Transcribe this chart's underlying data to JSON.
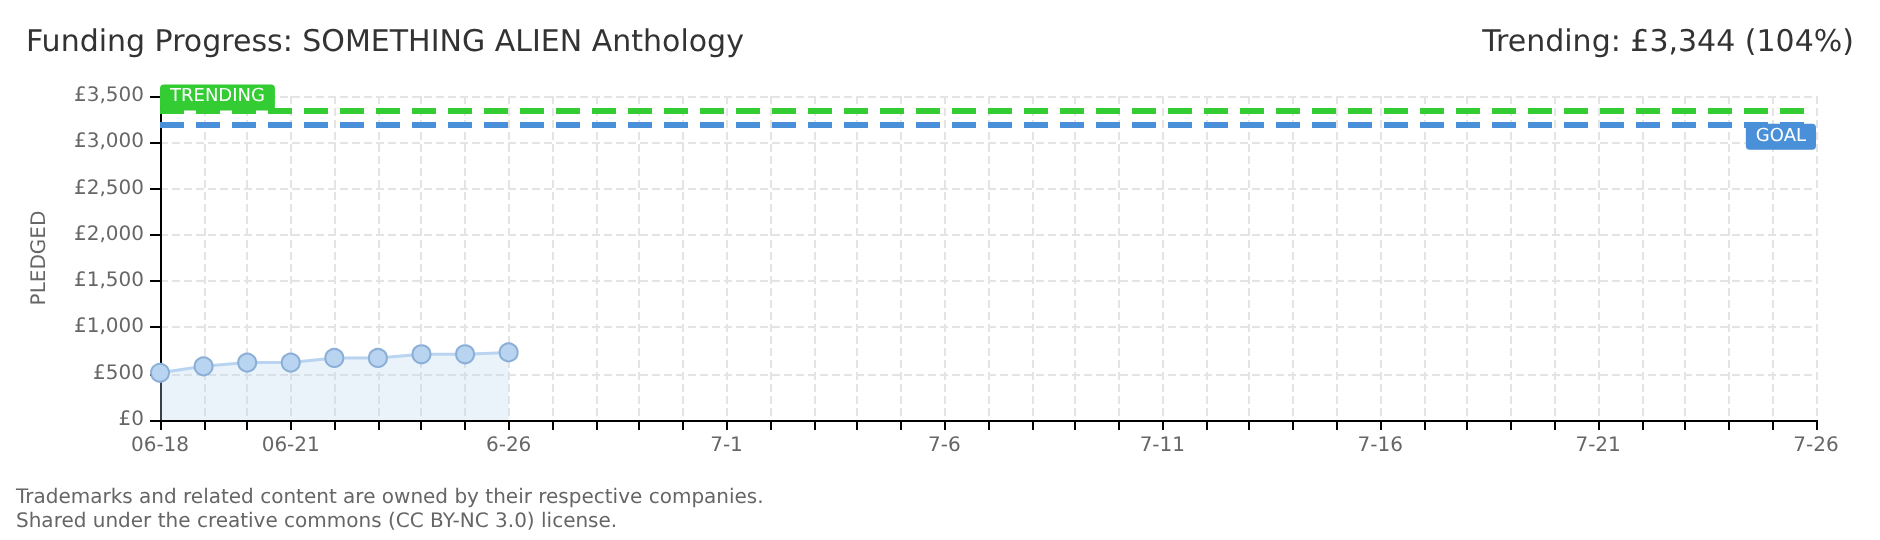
{
  "chart_data": {
    "type": "area",
    "title": "Funding Progress: SOMETHING ALIEN Anthology",
    "subtitle": "Trending: £3,344 (104%)",
    "ylabel": "PLEDGED",
    "categories": [
      "06-18",
      null,
      null,
      "06-21",
      null,
      null,
      null,
      null,
      "6-26",
      null,
      null,
      null,
      null,
      "7-1",
      null,
      null,
      null,
      null,
      "7-6",
      null,
      null,
      null,
      null,
      "7-11",
      null,
      null,
      null,
      null,
      "7-16",
      null,
      null,
      null,
      null,
      "7-21",
      null,
      null,
      null,
      null,
      "7-26"
    ],
    "series": [
      {
        "color": "#b8d4f0",
        "values": [
          510,
          580,
          620,
          620,
          670,
          670,
          710,
          710,
          730,
          null,
          null,
          null,
          null,
          null,
          null,
          null,
          null,
          null,
          null,
          null,
          null,
          null,
          null,
          null,
          null,
          null,
          null,
          null,
          null,
          null,
          null,
          null,
          null,
          null,
          null,
          null,
          null,
          null,
          null
        ]
      }
    ],
    "ylim": [
      0,
      3500
    ],
    "yticks": [
      {
        "value": 0,
        "label": "£0"
      },
      {
        "value": 500,
        "label": "£500"
      },
      {
        "value": 1000,
        "label": "£1,000"
      },
      {
        "value": 1500,
        "label": "£1,500"
      },
      {
        "value": 2000,
        "label": "£2,000"
      },
      {
        "value": 2500,
        "label": "£2,500"
      },
      {
        "value": 3000,
        "label": "£3,000"
      },
      {
        "value": 3500,
        "label": "£3,500"
      }
    ],
    "ref_lines": [
      {
        "axis": "y",
        "value": 3344,
        "label": "TRENDING",
        "color": "#33cc33",
        "line_style": "dashed"
      },
      {
        "axis": "y",
        "value": 3200,
        "label": "GOAL",
        "color": "#4a90d9",
        "line_style": "dashed"
      }
    ],
    "annotations": [
      "Trademarks and related content are owned by their respective companies.",
      "Shared under the creative commons (CC BY-NC 3.0) license."
    ],
    "grid": true,
    "marker": "circle"
  }
}
